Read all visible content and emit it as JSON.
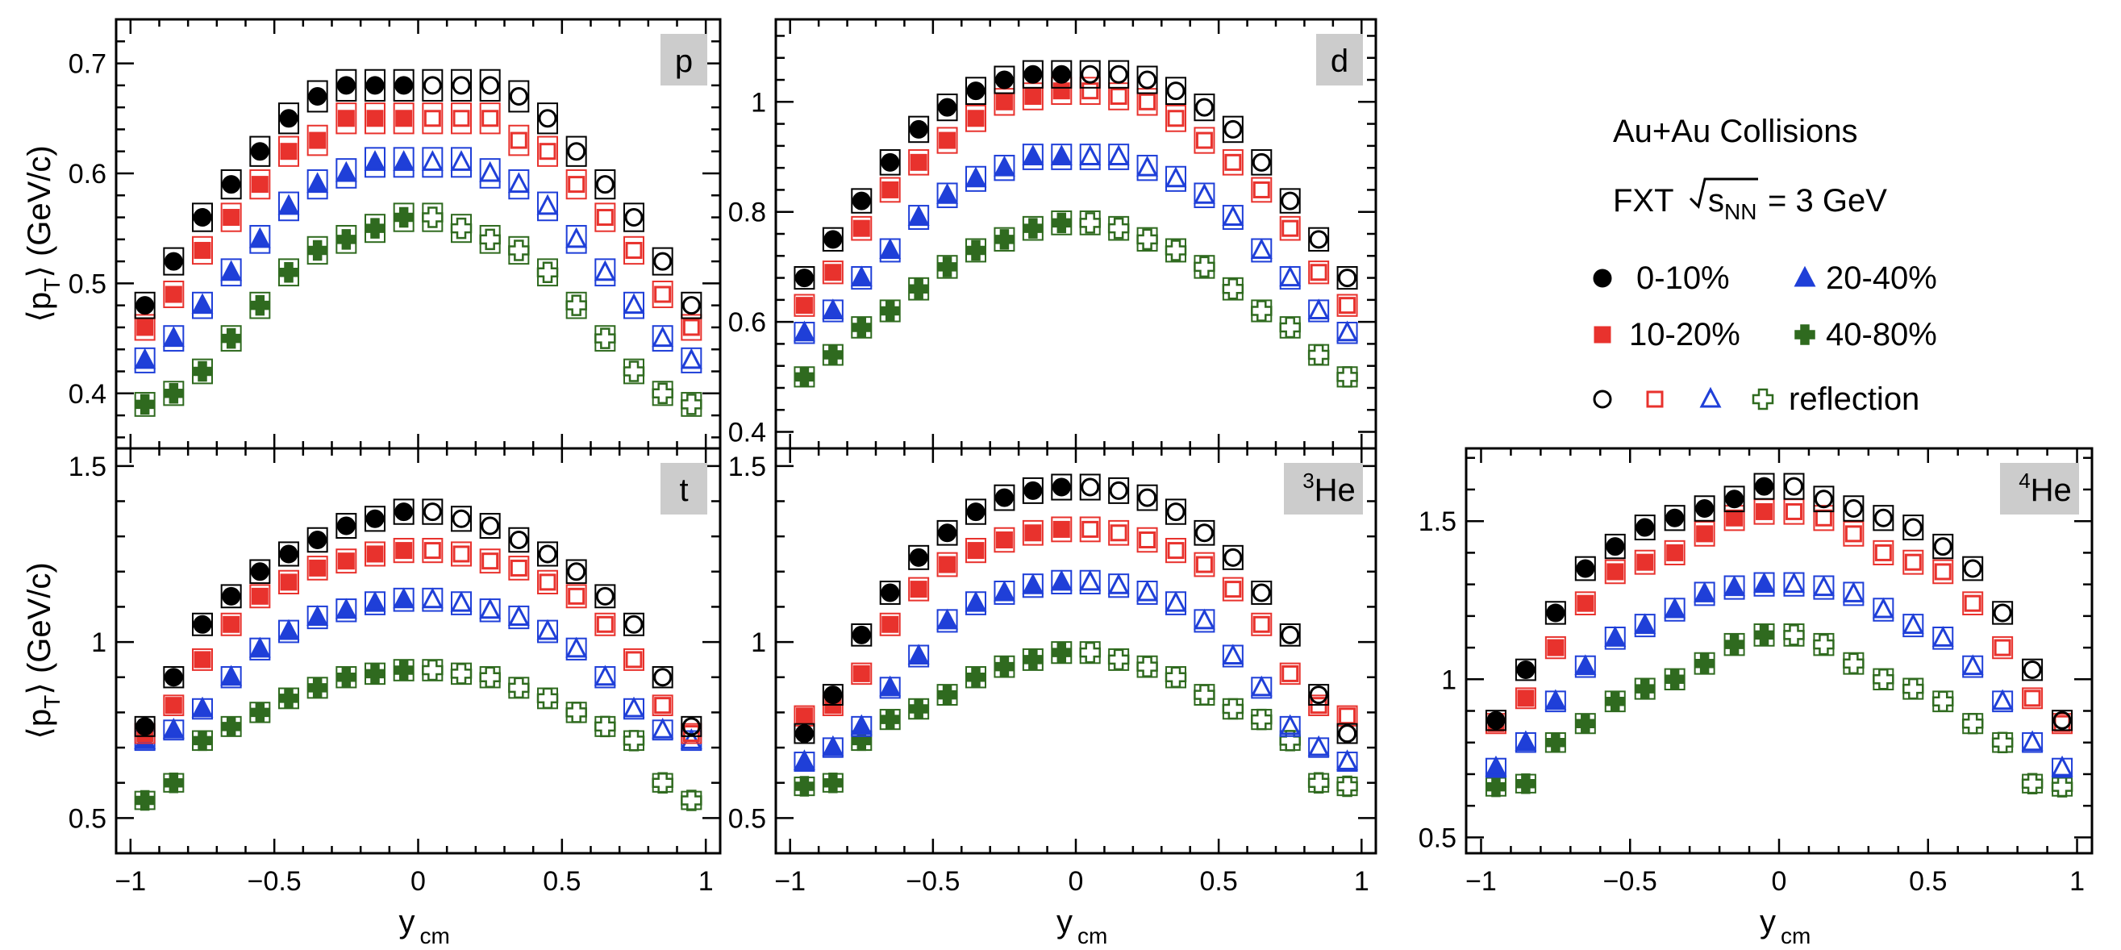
{
  "legend": {
    "line1": "Au+Au Collisions",
    "line2_prefix": "FXT",
    "line2_var": "s",
    "line2_sub": "NN",
    "line2_suffix": "= 3 GeV",
    "entries": [
      {
        "label": "0-10%",
        "series": "0-10%"
      },
      {
        "label": "20-40%",
        "series": "20-40%"
      },
      {
        "label": "10-20%",
        "series": "10-20%"
      },
      {
        "label": "40-80%",
        "series": "40-80%"
      }
    ],
    "reflection_label": "reflection"
  },
  "axes": {
    "x_label": "y",
    "x_sub": "cm",
    "y_label_open": "⟨p",
    "y_label_sub": "T",
    "y_label_close": "⟩ (GeV/c)"
  },
  "colors": {
    "0-10%": "#000000",
    "10-20%": "#e8322d",
    "20-40%": "#1f3fd8",
    "40-80%": "#2f6a1f",
    "label_box": "#cccccc"
  },
  "markers": {
    "0-10%": [
      "circle-filled",
      "circle-open"
    ],
    "10-20%": [
      "square-filled",
      "square-open"
    ],
    "20-40%": [
      "triangle-filled",
      "triangle-open"
    ],
    "40-80%": [
      "cross-filled",
      "cross-open"
    ]
  },
  "chart_data": [
    {
      "type": "scatter",
      "panel": "p",
      "particle": "p",
      "particle_sup": "",
      "xlim": [
        -1.05,
        1.05
      ],
      "ylim": [
        0.35,
        0.74
      ],
      "xticks": [
        "-1",
        "-0.5",
        "0",
        "0.5",
        "1"
      ],
      "yticks": [
        0.4,
        0.5,
        0.6,
        0.7
      ],
      "ytick_labels": [
        "0.4",
        "0.5",
        "0.6",
        "0.7"
      ],
      "x": [
        -0.95,
        -0.85,
        -0.75,
        -0.65,
        -0.55,
        -0.45,
        -0.35,
        -0.25,
        -0.15,
        -0.05
      ],
      "series": [
        {
          "name": "0-10%",
          "values": [
            0.48,
            0.52,
            0.56,
            0.59,
            0.62,
            0.65,
            0.67,
            0.68,
            0.68,
            0.68
          ]
        },
        {
          "name": "10-20%",
          "values": [
            0.46,
            0.49,
            0.53,
            0.56,
            0.59,
            0.62,
            0.63,
            0.65,
            0.65,
            0.65
          ]
        },
        {
          "name": "20-40%",
          "values": [
            0.43,
            0.45,
            0.48,
            0.51,
            0.54,
            0.57,
            0.59,
            0.6,
            0.61,
            0.61
          ]
        },
        {
          "name": "40-80%",
          "values": [
            0.39,
            0.4,
            0.42,
            0.45,
            0.48,
            0.51,
            0.53,
            0.54,
            0.55,
            0.56
          ]
        }
      ]
    },
    {
      "type": "scatter",
      "panel": "d",
      "particle": "d",
      "particle_sup": "",
      "xlim": [
        -1.05,
        1.05
      ],
      "ylim": [
        0.37,
        1.15
      ],
      "xticks": [
        "-1",
        "-0.5",
        "0",
        "0.5",
        "1"
      ],
      "yticks": [
        0.4,
        0.6,
        0.8,
        1.0
      ],
      "ytick_labels": [
        "0.4",
        "0.6",
        "0.8",
        "1"
      ],
      "x": [
        -0.95,
        -0.85,
        -0.75,
        -0.65,
        -0.55,
        -0.45,
        -0.35,
        -0.25,
        -0.15,
        -0.05
      ],
      "series": [
        {
          "name": "0-10%",
          "values": [
            0.68,
            0.75,
            0.82,
            0.89,
            0.95,
            0.99,
            1.02,
            1.04,
            1.05,
            1.05
          ]
        },
        {
          "name": "10-20%",
          "values": [
            0.63,
            0.69,
            0.77,
            0.84,
            0.89,
            0.93,
            0.97,
            1.0,
            1.01,
            1.02
          ]
        },
        {
          "name": "20-40%",
          "values": [
            0.58,
            0.62,
            0.68,
            0.73,
            0.79,
            0.83,
            0.86,
            0.88,
            0.9,
            0.9
          ]
        },
        {
          "name": "40-80%",
          "values": [
            0.5,
            0.54,
            0.59,
            0.62,
            0.66,
            0.7,
            0.73,
            0.75,
            0.77,
            0.78
          ]
        }
      ]
    },
    {
      "type": "scatter",
      "panel": "t",
      "particle": "t",
      "particle_sup": "",
      "xlim": [
        -1.05,
        1.05
      ],
      "ylim": [
        0.4,
        1.55
      ],
      "xticks": [
        "-1",
        "-0.5",
        "0",
        "0.5",
        "1"
      ],
      "yticks": [
        0.5,
        1.0,
        1.5
      ],
      "ytick_labels": [
        "0.5",
        "1",
        "1.5"
      ],
      "x": [
        -0.95,
        -0.85,
        -0.75,
        -0.65,
        -0.55,
        -0.45,
        -0.35,
        -0.25,
        -0.15,
        -0.05
      ],
      "series": [
        {
          "name": "0-10%",
          "values": [
            0.76,
            0.9,
            1.05,
            1.13,
            1.2,
            1.25,
            1.29,
            1.33,
            1.35,
            1.37
          ]
        },
        {
          "name": "10-20%",
          "values": [
            0.74,
            0.82,
            0.95,
            1.05,
            1.13,
            1.17,
            1.21,
            1.23,
            1.25,
            1.26
          ]
        },
        {
          "name": "20-40%",
          "values": [
            0.72,
            0.75,
            0.81,
            0.9,
            0.98,
            1.03,
            1.07,
            1.09,
            1.11,
            1.12
          ]
        },
        {
          "name": "40-80%",
          "values": [
            0.55,
            0.6,
            0.72,
            0.76,
            0.8,
            0.84,
            0.87,
            0.9,
            0.91,
            0.92
          ]
        }
      ]
    },
    {
      "type": "scatter",
      "panel": "3He",
      "particle": "He",
      "particle_sup": "3",
      "xlim": [
        -1.05,
        1.05
      ],
      "ylim": [
        0.4,
        1.55
      ],
      "xticks": [
        "-1",
        "-0.5",
        "0",
        "0.5",
        "1"
      ],
      "yticks": [
        0.5,
        1.0,
        1.5
      ],
      "ytick_labels": [
        "0.5",
        "1",
        "1.5"
      ],
      "x": [
        -0.95,
        -0.85,
        -0.75,
        -0.65,
        -0.55,
        -0.45,
        -0.35,
        -0.25,
        -0.15,
        -0.05
      ],
      "series": [
        {
          "name": "0-10%",
          "values": [
            0.74,
            0.85,
            1.02,
            1.14,
            1.24,
            1.31,
            1.37,
            1.41,
            1.43,
            1.44
          ]
        },
        {
          "name": "10-20%",
          "values": [
            0.79,
            0.82,
            0.91,
            1.05,
            1.15,
            1.22,
            1.26,
            1.29,
            1.31,
            1.32
          ]
        },
        {
          "name": "20-40%",
          "values": [
            0.66,
            0.7,
            0.76,
            0.87,
            0.96,
            1.06,
            1.11,
            1.14,
            1.16,
            1.17
          ]
        },
        {
          "name": "40-80%",
          "values": [
            0.59,
            0.6,
            0.72,
            0.78,
            0.81,
            0.85,
            0.9,
            0.93,
            0.95,
            0.97
          ]
        }
      ]
    },
    {
      "type": "scatter",
      "panel": "4He",
      "particle": "He",
      "particle_sup": "4",
      "xlim": [
        -1.05,
        1.05
      ],
      "ylim": [
        0.45,
        1.73
      ],
      "xticks": [
        "-1",
        "-0.5",
        "0",
        "0.5",
        "1"
      ],
      "yticks": [
        0.5,
        1.0,
        1.5
      ],
      "ytick_labels": [
        "0.5",
        "1",
        "1.5"
      ],
      "x": [
        -0.95,
        -0.85,
        -0.75,
        -0.65,
        -0.55,
        -0.45,
        -0.35,
        -0.25,
        -0.15,
        -0.05
      ],
      "series": [
        {
          "name": "0-10%",
          "values": [
            0.87,
            1.03,
            1.21,
            1.35,
            1.42,
            1.48,
            1.51,
            1.54,
            1.57,
            1.61
          ]
        },
        {
          "name": "10-20%",
          "values": [
            0.86,
            0.94,
            1.1,
            1.24,
            1.34,
            1.37,
            1.4,
            1.46,
            1.51,
            1.53
          ]
        },
        {
          "name": "20-40%",
          "values": [
            0.72,
            0.8,
            0.93,
            1.04,
            1.13,
            1.17,
            1.22,
            1.27,
            1.29,
            1.3
          ]
        },
        {
          "name": "40-80%",
          "values": [
            0.66,
            0.67,
            0.8,
            0.86,
            0.93,
            0.97,
            1.0,
            1.05,
            1.11,
            1.14
          ]
        }
      ]
    }
  ]
}
